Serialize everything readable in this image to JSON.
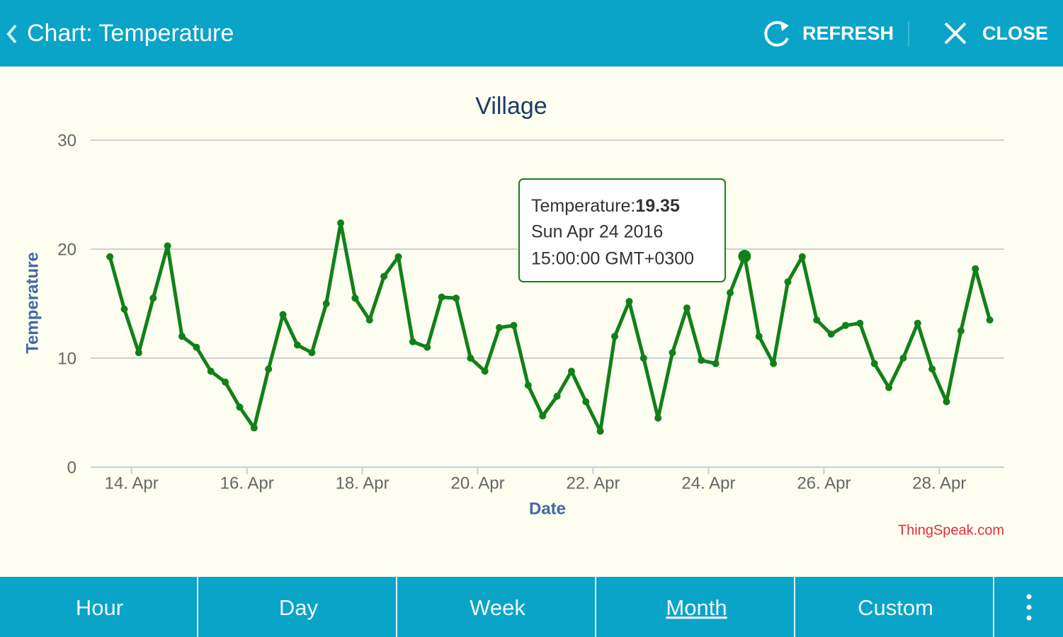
{
  "header": {
    "title": "Chart: Temperature",
    "actions": [
      "REFRESH",
      "CLOSE"
    ]
  },
  "chart_data": {
    "type": "line",
    "title": "Village",
    "xlabel": "Date",
    "ylabel": "Temperature",
    "x": [
      "2016-04-13T15:00",
      "2016-04-13T21:00",
      "2016-04-14T03:00",
      "2016-04-14T09:00",
      "2016-04-14T15:00",
      "2016-04-14T21:00",
      "2016-04-15T03:00",
      "2016-04-15T09:00",
      "2016-04-15T15:00",
      "2016-04-15T21:00",
      "2016-04-16T03:00",
      "2016-04-16T09:00",
      "2016-04-16T15:00",
      "2016-04-16T21:00",
      "2016-04-17T03:00",
      "2016-04-17T09:00",
      "2016-04-17T15:00",
      "2016-04-17T21:00",
      "2016-04-18T03:00",
      "2016-04-18T09:00",
      "2016-04-18T15:00",
      "2016-04-18T21:00",
      "2016-04-19T03:00",
      "2016-04-19T09:00",
      "2016-04-19T15:00",
      "2016-04-19T21:00",
      "2016-04-20T03:00",
      "2016-04-20T09:00",
      "2016-04-20T15:00",
      "2016-04-20T21:00",
      "2016-04-21T03:00",
      "2016-04-21T09:00",
      "2016-04-21T15:00",
      "2016-04-21T21:00",
      "2016-04-22T03:00",
      "2016-04-22T09:00",
      "2016-04-22T15:00",
      "2016-04-22T21:00",
      "2016-04-23T03:00",
      "2016-04-23T09:00",
      "2016-04-23T15:00",
      "2016-04-23T21:00",
      "2016-04-24T03:00",
      "2016-04-24T09:00",
      "2016-04-24T15:00",
      "2016-04-24T21:00",
      "2016-04-25T03:00",
      "2016-04-25T09:00",
      "2016-04-25T15:00",
      "2016-04-25T21:00",
      "2016-04-26T03:00",
      "2016-04-26T09:00",
      "2016-04-26T15:00",
      "2016-04-26T21:00",
      "2016-04-27T03:00",
      "2016-04-27T09:00",
      "2016-04-27T15:00",
      "2016-04-27T21:00",
      "2016-04-28T03:00",
      "2016-04-28T09:00",
      "2016-04-28T15:00",
      "2016-04-28T21:00"
    ],
    "series": [
      {
        "name": "Temperature",
        "color": "#12801a",
        "values": [
          19.3,
          14.5,
          10.5,
          15.5,
          20.3,
          12,
          11,
          8.8,
          7.8,
          5.5,
          3.6,
          9,
          14,
          11.2,
          10.5,
          15,
          22.4,
          15.5,
          13.5,
          17.5,
          19.3,
          11.5,
          11,
          15.6,
          15.5,
          10,
          8.8,
          12.8,
          13,
          7.5,
          4.7,
          6.5,
          8.8,
          6,
          3.3,
          12,
          15.2,
          10,
          4.5,
          10.5,
          14.6,
          9.8,
          9.5,
          16,
          19.35,
          12,
          9.5,
          17,
          19.3,
          13.5,
          12.2,
          13,
          13.2,
          9.5,
          7.3,
          10,
          13.2,
          9,
          6,
          12.5,
          18.2,
          13.5
        ]
      }
    ],
    "xlim": [
      "2016-04-13T07:00",
      "2016-04-29T03:00"
    ],
    "xticks": [
      {
        "value": "2016-04-14T00:00",
        "label": "14. Apr"
      },
      {
        "value": "2016-04-16T00:00",
        "label": "16. Apr"
      },
      {
        "value": "2016-04-18T00:00",
        "label": "18. Apr"
      },
      {
        "value": "2016-04-20T00:00",
        "label": "20. Apr"
      },
      {
        "value": "2016-04-22T00:00",
        "label": "22. Apr"
      },
      {
        "value": "2016-04-24T00:00",
        "label": "24. Apr"
      },
      {
        "value": "2016-04-26T00:00",
        "label": "26. Apr"
      },
      {
        "value": "2016-04-28T00:00",
        "label": "28. Apr"
      }
    ],
    "ylim": [
      0,
      30
    ],
    "yticks": [
      0,
      10,
      20,
      30
    ],
    "grid": true,
    "tooltip": {
      "index": 44,
      "label": "Temperature:",
      "date": "Sun Apr 24 2016",
      "time": "15:00:00 GMT+0300"
    },
    "credit": "ThingSpeak.com"
  },
  "tabs": {
    "items": [
      "Hour",
      "Day",
      "Week",
      "Month",
      "Custom"
    ],
    "selected": 3
  }
}
